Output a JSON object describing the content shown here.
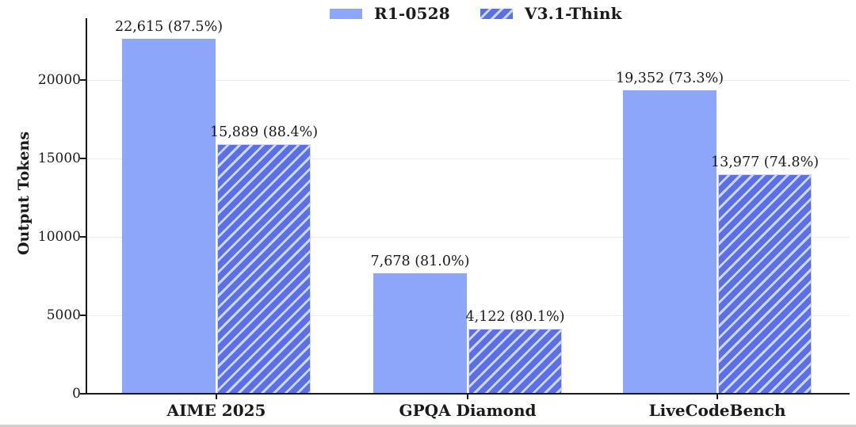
{
  "chart_data": {
    "type": "bar",
    "title": "",
    "ylabel": "Output Tokens",
    "xlabel": "",
    "categories": [
      "AIME 2025",
      "GPQA Diamond",
      "LiveCodeBench"
    ],
    "series": [
      {
        "name": "R1-0528",
        "style": "solid",
        "color": "#8ea6fa",
        "values": [
          22615,
          7678,
          19352
        ],
        "bar_labels": [
          "22,615 (87.5%)",
          "7,678 (81.0%)",
          "19,352 (73.3%)"
        ]
      },
      {
        "name": "V3.1-Think",
        "style": "hatched",
        "color": "#5b6fe6",
        "hatch_color": "#cdd6f8",
        "values": [
          15889,
          4122,
          13977
        ],
        "bar_labels": [
          "15,889 (88.4%)",
          "4,122 (80.1%)",
          "13,977 (74.8%)"
        ]
      }
    ],
    "yticks": [
      0,
      5000,
      10000,
      15000,
      20000
    ],
    "ylim": [
      0,
      24000
    ],
    "grid": "horizontal",
    "legend_position": "top-center"
  },
  "colors": {
    "gridline": "#ededed",
    "axis": "#1a1a1a",
    "text": "#1a1a1a",
    "background": "#ffffff",
    "bottom_strip": "#cfd1cf"
  }
}
